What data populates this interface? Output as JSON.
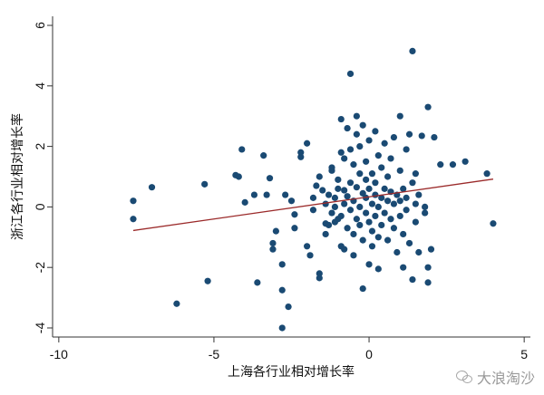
{
  "chart_data": {
    "type": "scatter",
    "title": "",
    "xlabel": "上海各行业相对增长率",
    "ylabel": "浙江各行业相对增长率",
    "xlim": [
      -10.2,
      5.2
    ],
    "ylim": [
      -4.3,
      6.3
    ],
    "xticks": [
      -10,
      -5,
      0,
      5
    ],
    "yticks": [
      -4,
      -2,
      0,
      2,
      4,
      6
    ],
    "grid": false,
    "marker_color": "#1a4a73",
    "fit_line_color": "#9b2a2a",
    "fit_line": {
      "x": [
        -7.6,
        4.0
      ],
      "y": [
        -0.78,
        0.92
      ]
    },
    "points": [
      [
        -7.6,
        -0.4
      ],
      [
        -7.6,
        0.2
      ],
      [
        -7.0,
        0.65
      ],
      [
        -6.2,
        -3.2
      ],
      [
        -5.3,
        0.75
      ],
      [
        -5.2,
        -2.45
      ],
      [
        -4.3,
        1.05
      ],
      [
        -4.2,
        1.0
      ],
      [
        -4.1,
        1.9
      ],
      [
        -4.0,
        0.15
      ],
      [
        -3.7,
        0.4
      ],
      [
        -3.6,
        -2.5
      ],
      [
        -3.4,
        1.7
      ],
      [
        -3.3,
        0.4
      ],
      [
        -3.2,
        0.95
      ],
      [
        -3.1,
        -1.2
      ],
      [
        -3.1,
        -1.4
      ],
      [
        -3.0,
        -0.8
      ],
      [
        -2.8,
        -1.9
      ],
      [
        -2.8,
        -2.75
      ],
      [
        -2.8,
        -4.0
      ],
      [
        -2.7,
        0.4
      ],
      [
        -2.6,
        -3.3
      ],
      [
        -2.5,
        0.2
      ],
      [
        -2.4,
        -0.7
      ],
      [
        -2.4,
        -0.25
      ],
      [
        -2.2,
        1.65
      ],
      [
        -2.2,
        1.8
      ],
      [
        -2.0,
        2.1
      ],
      [
        -2.0,
        -1.3
      ],
      [
        -1.9,
        -1.6
      ],
      [
        -1.8,
        -0.1
      ],
      [
        -1.8,
        0.3
      ],
      [
        -1.7,
        0.7
      ],
      [
        -1.6,
        1.0
      ],
      [
        -1.6,
        -2.2
      ],
      [
        -1.6,
        -2.35
      ],
      [
        -1.5,
        0.55
      ],
      [
        -1.4,
        -0.55
      ],
      [
        -1.4,
        0.1
      ],
      [
        -1.4,
        -0.9
      ],
      [
        -1.3,
        0.4
      ],
      [
        -1.3,
        -0.6
      ],
      [
        -1.2,
        -0.2
      ],
      [
        -1.2,
        1.2
      ],
      [
        -1.2,
        1.3
      ],
      [
        -1.1,
        0.3
      ],
      [
        -1.1,
        0.0
      ],
      [
        -1.1,
        -0.5
      ],
      [
        -1.0,
        0.9
      ],
      [
        -1.0,
        -0.4
      ],
      [
        -1.0,
        0.6
      ],
      [
        -0.9,
        2.9
      ],
      [
        -0.9,
        1.8
      ],
      [
        -0.9,
        -0.3
      ],
      [
        -0.9,
        -1.3
      ],
      [
        -0.8,
        0.1
      ],
      [
        -0.8,
        0.55
      ],
      [
        -0.8,
        1.6
      ],
      [
        -0.8,
        -1.4
      ],
      [
        -0.7,
        2.6
      ],
      [
        -0.7,
        -0.7
      ],
      [
        -0.7,
        0.35
      ],
      [
        -0.6,
        4.4
      ],
      [
        -0.6,
        0.8
      ],
      [
        -0.6,
        -0.1
      ],
      [
        -0.6,
        1.9
      ],
      [
        -0.5,
        0.2
      ],
      [
        -0.5,
        -0.9
      ],
      [
        -0.5,
        1.4
      ],
      [
        -0.5,
        -1.6
      ],
      [
        -0.4,
        2.4
      ],
      [
        -0.4,
        0.65
      ],
      [
        -0.4,
        -0.4
      ],
      [
        -0.4,
        3.0
      ],
      [
        -0.3,
        0.0
      ],
      [
        -0.3,
        1.1
      ],
      [
        -0.3,
        -0.6
      ],
      [
        -0.3,
        2.0
      ],
      [
        -0.2,
        0.45
      ],
      [
        -0.2,
        -1.1
      ],
      [
        -0.2,
        2.7
      ],
      [
        -0.2,
        -2.7
      ],
      [
        -0.1,
        0.9
      ],
      [
        -0.1,
        -0.2
      ],
      [
        -0.1,
        1.5
      ],
      [
        -0.1,
        0.3
      ],
      [
        0.0,
        -0.5
      ],
      [
        0.0,
        0.6
      ],
      [
        0.0,
        -1.9
      ],
      [
        0.0,
        2.2
      ],
      [
        0.1,
        0.1
      ],
      [
        0.1,
        -0.8
      ],
      [
        0.1,
        1.1
      ],
      [
        0.1,
        -1.3
      ],
      [
        0.2,
        0.4
      ],
      [
        0.2,
        2.5
      ],
      [
        0.2,
        -0.3
      ],
      [
        0.2,
        0.8
      ],
      [
        0.3,
        1.7
      ],
      [
        0.3,
        -1.0
      ],
      [
        0.3,
        0.0
      ],
      [
        0.3,
        -2.05
      ],
      [
        0.4,
        0.3
      ],
      [
        0.4,
        1.3
      ],
      [
        0.4,
        -0.6
      ],
      [
        0.5,
        2.1
      ],
      [
        0.5,
        0.6
      ],
      [
        0.5,
        -0.2
      ],
      [
        0.6,
        1.0
      ],
      [
        0.6,
        -1.1
      ],
      [
        0.6,
        0.2
      ],
      [
        0.7,
        0.5
      ],
      [
        0.7,
        -0.4
      ],
      [
        0.7,
        1.6
      ],
      [
        0.8,
        0.1
      ],
      [
        0.8,
        -0.7
      ],
      [
        0.8,
        2.3
      ],
      [
        0.9,
        0.4
      ],
      [
        0.9,
        -1.5
      ],
      [
        1.0,
        0.2
      ],
      [
        1.0,
        1.2
      ],
      [
        1.0,
        -0.3
      ],
      [
        1.0,
        3.0
      ],
      [
        1.1,
        0.6
      ],
      [
        1.1,
        -0.9
      ],
      [
        1.1,
        -2.0
      ],
      [
        1.2,
        1.9
      ],
      [
        1.2,
        -0.1
      ],
      [
        1.2,
        0.3
      ],
      [
        1.3,
        2.4
      ],
      [
        1.3,
        -1.2
      ],
      [
        1.4,
        0.8
      ],
      [
        1.4,
        -2.4
      ],
      [
        1.4,
        5.15
      ],
      [
        1.5,
        0.1
      ],
      [
        1.5,
        -0.5
      ],
      [
        1.5,
        1.1
      ],
      [
        1.6,
        0.4
      ],
      [
        1.6,
        -1.5
      ],
      [
        1.7,
        2.35
      ],
      [
        1.8,
        -0.2
      ],
      [
        1.8,
        0.0
      ],
      [
        1.9,
        3.3
      ],
      [
        1.9,
        -2.5
      ],
      [
        1.9,
        -2.0
      ],
      [
        2.0,
        -1.4
      ],
      [
        2.1,
        2.3
      ],
      [
        2.3,
        1.4
      ],
      [
        2.7,
        1.4
      ],
      [
        3.1,
        1.5
      ],
      [
        3.8,
        1.1
      ],
      [
        4.0,
        -0.55
      ]
    ]
  }
}
